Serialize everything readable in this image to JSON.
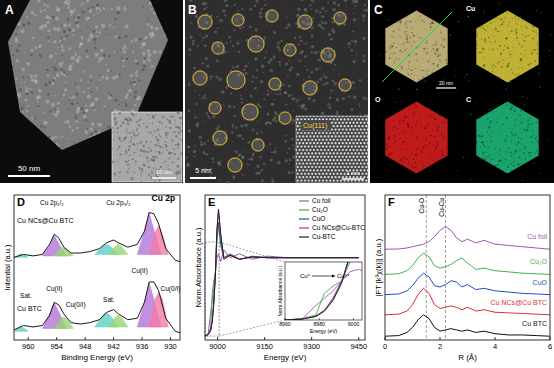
{
  "images": [
    {
      "panel": "A",
      "scale_bar": "50 nm",
      "inset_scale_bar": "10 nm"
    },
    {
      "panel": "B",
      "scale_bar": "5 nm",
      "inset_label": "Cu(111)",
      "inset_scale_bar": "1 nm"
    },
    {
      "panel": "C",
      "scale_bar": "20 nm",
      "maps": [
        {
          "label": "Cu",
          "color": "#e0d040"
        },
        {
          "label": "O",
          "color": "#e02020"
        },
        {
          "label": "C",
          "color": "#20c080"
        }
      ]
    }
  ],
  "chart_data": [
    {
      "panel": "D",
      "type": "line",
      "xlabel": "Binding Energy (eV)",
      "ylabel": "Intential (a.u.)",
      "xlim": [
        963,
        928
      ],
      "ylim": [
        0,
        10
      ],
      "xticks": [
        960,
        954,
        948,
        942,
        936,
        930
      ],
      "tick_labels": "x",
      "x": [
        963,
        961,
        959,
        957,
        955.5,
        954.5,
        953.5,
        952.5,
        951,
        949,
        947,
        945,
        943.5,
        942,
        941,
        939,
        937,
        935.5,
        934.5,
        933.5,
        932.5,
        931,
        929,
        928
      ],
      "series": [
        {
          "name": "Cu NCs@Cu BTC",
          "color": "#1a1a1a",
          "values": [
            5.7,
            5.9,
            5.8,
            5.9,
            6.6,
            7.3,
            7.0,
            6.4,
            6.0,
            6.0,
            6.1,
            6.3,
            6.7,
            6.9,
            6.7,
            6.4,
            6.6,
            7.5,
            8.8,
            8.7,
            8.0,
            6.3,
            5.5,
            5.4
          ],
          "peaks": [
            {
              "color": "#5ccfc4",
              "x": [
                963,
                961.5,
                960
              ],
              "values": [
                5.7,
                5.95,
                5.7
              ]
            },
            {
              "color": "#b374d6",
              "x": [
                957,
                955.5,
                954.5,
                953.5,
                952
              ],
              "values": [
                5.8,
                6.5,
                7.2,
                6.6,
                5.8
              ]
            },
            {
              "color": "#93d673",
              "x": [
                954.5,
                953.3,
                952.5,
                951.7,
                950.5
              ],
              "values": [
                5.8,
                6.3,
                6.4,
                6.2,
                5.8
              ]
            },
            {
              "color": "#5ccfc4",
              "x": [
                946,
                944.5,
                943.5,
                942.5,
                941
              ],
              "values": [
                5.9,
                6.4,
                6.6,
                6.4,
                5.9
              ]
            },
            {
              "color": "#93d673",
              "x": [
                943,
                941.8,
                941,
                940.2,
                939
              ],
              "values": [
                5.9,
                6.4,
                6.6,
                6.4,
                5.9
              ]
            },
            {
              "color": "#b374d6",
              "x": [
                937,
                935.5,
                934.5,
                933.5,
                932
              ],
              "values": [
                5.9,
                7.5,
                8.75,
                7.6,
                5.9
              ]
            },
            {
              "color": "#f27aa6",
              "x": [
                934.5,
                933.3,
                932.5,
                931.7,
                930.5
              ],
              "values": [
                5.9,
                7.4,
                7.9,
                7.3,
                5.9
              ]
            }
          ]
        },
        {
          "name": "Cu BTC",
          "color": "#1a1a1a",
          "values": [
            0.7,
            1.0,
            0.9,
            1.0,
            1.7,
            2.6,
            2.4,
            1.8,
            1.2,
            1.1,
            1.2,
            1.4,
            1.9,
            2.1,
            1.8,
            1.4,
            1.5,
            2.6,
            4.0,
            4.0,
            3.4,
            1.5,
            0.6,
            0.5
          ],
          "peaks": [
            {
              "color": "#5ccfc4",
              "x": [
                963,
                961.5,
                960
              ],
              "values": [
                0.6,
                0.95,
                0.6
              ]
            },
            {
              "color": "#b374d6",
              "x": [
                957,
                955.5,
                954.5,
                953.5,
                952
              ],
              "values": [
                0.8,
                1.8,
                2.55,
                1.9,
                0.8
              ]
            },
            {
              "color": "#93d673",
              "x": [
                954.5,
                953.3,
                952.5,
                951.7,
                950.5
              ],
              "values": [
                0.8,
                1.4,
                1.6,
                1.4,
                0.8
              ]
            },
            {
              "color": "#5ccfc4",
              "x": [
                946,
                944.5,
                943.5,
                942.5,
                941
              ],
              "values": [
                0.9,
                1.6,
                1.9,
                1.6,
                0.9
              ]
            },
            {
              "color": "#93d673",
              "x": [
                943,
                941.8,
                941,
                940.2,
                939
              ],
              "values": [
                0.9,
                1.5,
                1.7,
                1.5,
                0.9
              ]
            },
            {
              "color": "#b374d6",
              "x": [
                937,
                935.5,
                934.5,
                933.5,
                932
              ],
              "values": [
                0.9,
                2.6,
                3.95,
                2.8,
                0.9
              ]
            },
            {
              "color": "#f27aa6",
              "x": [
                934.5,
                933.3,
                932.5,
                931.7,
                930.5
              ],
              "values": [
                0.9,
                2.8,
                3.3,
                2.8,
                0.9
              ]
            }
          ]
        }
      ],
      "annotations": [
        {
          "text": "Cu 2p₁/₂",
          "x": 955,
          "y": 9.3
        },
        {
          "text": "Cu 2p₃/₂",
          "x": 941,
          "y": 9.3
        },
        {
          "text": "Cu 2p",
          "x": 931.5,
          "y": 9.6
        },
        {
          "text": "Cu(II)",
          "x": 954.5,
          "y": 3.4
        },
        {
          "text": "Sat.",
          "x": 960.5,
          "y": 2.9
        },
        {
          "text": "Cu(0/I)",
          "x": 950,
          "y": 2.3
        },
        {
          "text": "Sat.",
          "x": 943,
          "y": 2.6
        },
        {
          "text": "Cu(II)",
          "x": 936.5,
          "y": 4.6
        },
        {
          "text": "Cu(0/I)",
          "x": 930,
          "y": 3.4
        }
      ]
    },
    {
      "panel": "E",
      "type": "line",
      "xlabel": "Energy (eV)",
      "ylabel": "Norm.Absorbance (a.u.)",
      "xlim": [
        8960,
        9470
      ],
      "ylim": [
        -0.05,
        1.8
      ],
      "xticks": [
        9000,
        9150,
        9300,
        9450
      ],
      "tick_labels": "x",
      "legend": "upper right",
      "x": [
        8960,
        8970,
        8978,
        8983,
        8988,
        8993,
        8998,
        9003,
        9010,
        9020,
        9040,
        9070,
        9110,
        9160,
        9220,
        9300,
        9380,
        9450
      ],
      "series": [
        {
          "name": "Cu foil",
          "color": "#9b59b6",
          "values": [
            0,
            0.02,
            0.3,
            0.45,
            0.6,
            0.8,
            1.0,
            1.05,
            0.95,
            1.1,
            1.0,
            1.05,
            0.98,
            1.02,
            1.0,
            1.0,
            1.0,
            1.0
          ]
        },
        {
          "name": "Cu₂O",
          "color": "#3cb44b",
          "values": [
            0,
            0.03,
            0.1,
            0.55,
            0.7,
            0.8,
            1.2,
            1.4,
            1.15,
            1.0,
            1.05,
            0.98,
            1.02,
            1.0,
            1.0,
            1.0,
            1.0,
            1.0
          ]
        },
        {
          "name": "CuO",
          "color": "#1f4fbf",
          "values": [
            0,
            0.02,
            0.08,
            0.2,
            0.45,
            0.8,
            1.3,
            1.45,
            1.2,
            1.0,
            1.04,
            0.98,
            1.01,
            1.0,
            1.0,
            1.0,
            1.0,
            1.0
          ]
        },
        {
          "name": "Cu NCs@Cu-BTC",
          "color": "#e03030",
          "values": [
            0,
            0.02,
            0.08,
            0.2,
            0.42,
            0.78,
            1.35,
            1.6,
            1.3,
            1.0,
            1.03,
            0.98,
            1.01,
            1.0,
            1.0,
            1.0,
            1.0,
            1.0
          ]
        },
        {
          "name": "Cu-BTC",
          "color": "#1b1f3b",
          "values": [
            0,
            0.02,
            0.07,
            0.18,
            0.4,
            0.75,
            1.35,
            1.62,
            1.3,
            0.98,
            1.03,
            0.98,
            1.01,
            1.0,
            1.0,
            1.0,
            1.0,
            1.0
          ]
        }
      ],
      "inset": {
        "xlim": [
          8960,
          9005
        ],
        "ylim": [
          0,
          1.2
        ],
        "xticks": [
          8960,
          8980,
          9000
        ],
        "xlabel": "Energy (eV)",
        "ylabel": "Norm.Absorbance (a.u.)",
        "annotation": [
          "Cu⁰",
          "Cu²⁺"
        ]
      }
    },
    {
      "panel": "F",
      "type": "line",
      "xlabel": "R (Å)",
      "ylabel": "|FT [k³χ(k)]| (a.u.)",
      "xlim": [
        0,
        6
      ],
      "ylim": [
        0,
        11.5
      ],
      "xticks": [
        0,
        2,
        4,
        6
      ],
      "tick_labels": "x",
      "x": [
        0,
        0.5,
        0.8,
        1.0,
        1.2,
        1.4,
        1.6,
        1.8,
        2.0,
        2.2,
        2.4,
        2.6,
        2.8,
        3.0,
        3.3,
        3.6,
        4.0,
        4.5,
        5.0,
        5.5,
        6.0
      ],
      "series": [
        {
          "name": "Cu foil",
          "color": "#9b59b6",
          "values": [
            7.2,
            7.22,
            7.3,
            7.4,
            7.5,
            7.6,
            7.8,
            8.2,
            8.7,
            9.0,
            8.7,
            8.1,
            7.8,
            8.0,
            7.7,
            7.9,
            7.6,
            7.5,
            7.4,
            7.3,
            7.2
          ]
        },
        {
          "name": "Cu₂O",
          "color": "#3cb44b",
          "values": [
            5.2,
            5.25,
            5.5,
            5.9,
            6.5,
            6.9,
            6.6,
            5.9,
            5.7,
            5.8,
            6.0,
            6.3,
            6.5,
            6.1,
            5.6,
            5.7,
            5.5,
            5.4,
            5.3,
            5.25,
            5.2
          ]
        },
        {
          "name": "CuO",
          "color": "#1f4fbf",
          "values": [
            3.6,
            3.65,
            3.9,
            4.3,
            4.9,
            5.3,
            5.0,
            4.3,
            4.2,
            4.4,
            4.7,
            4.6,
            4.2,
            4.4,
            4.0,
            4.1,
            3.9,
            3.8,
            3.7,
            3.65,
            3.6
          ]
        },
        {
          "name": "Cu NCs@Cu BTC",
          "color": "#e03030",
          "values": [
            2.0,
            2.05,
            2.3,
            2.8,
            3.6,
            4.1,
            3.7,
            2.8,
            2.5,
            2.6,
            2.7,
            2.6,
            2.4,
            2.6,
            2.3,
            2.4,
            2.2,
            2.15,
            2.1,
            2.05,
            2.0
          ]
        },
        {
          "name": "Cu BTC",
          "color": "#111111",
          "values": [
            0.3,
            0.35,
            0.6,
            1.0,
            1.6,
            2.0,
            1.7,
            1.0,
            0.7,
            0.8,
            0.9,
            0.8,
            0.7,
            0.8,
            0.6,
            0.7,
            0.5,
            0.4,
            0.4,
            0.35,
            0.3
          ]
        }
      ],
      "reference_lines": [
        {
          "x": 1.5,
          "label": "Cu-O"
        },
        {
          "x": 2.2,
          "label": "Cu-Cu"
        }
      ]
    }
  ]
}
